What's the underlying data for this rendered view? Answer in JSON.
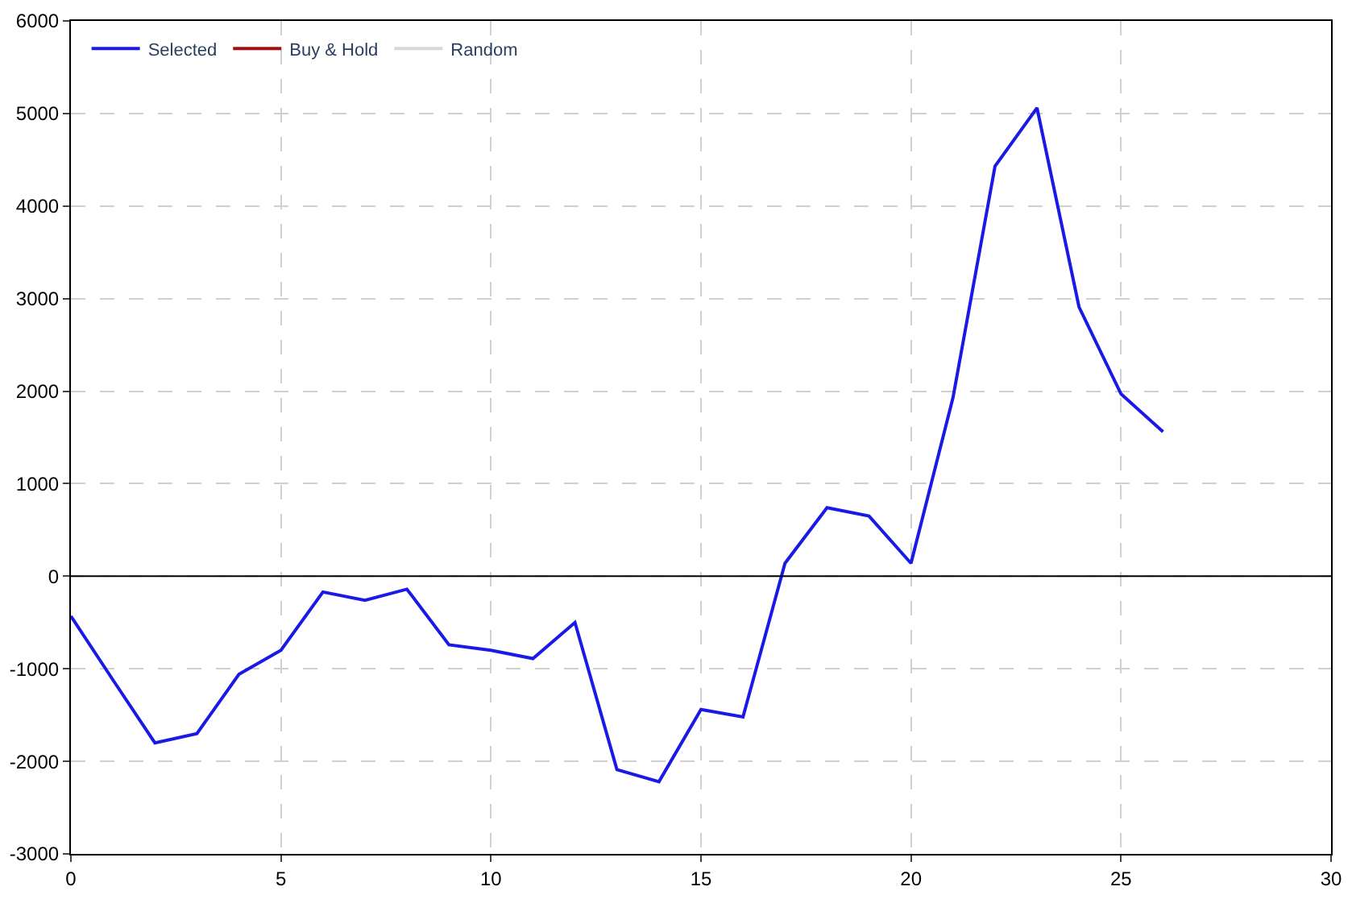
{
  "chart_data": {
    "type": "line",
    "x": [
      0,
      1,
      2,
      3,
      4,
      5,
      6,
      7,
      8,
      9,
      10,
      11,
      12,
      13,
      14,
      15,
      16,
      17,
      18,
      19,
      20,
      21,
      22,
      23,
      24,
      25,
      26
    ],
    "series": [
      {
        "name": "Selected",
        "color": "#1a1ae6",
        "values": [
          -430,
          -1120,
          -1800,
          -1700,
          -1060,
          -800,
          -170,
          -260,
          -140,
          -740,
          -800,
          -890,
          -500,
          -2090,
          -2220,
          -1440,
          -1520,
          140,
          740,
          650,
          140,
          1930,
          4430,
          5060,
          2910,
          1970,
          1560
        ]
      },
      {
        "name": "Buy & Hold",
        "color": "#a01010",
        "values": [
          null,
          null,
          null,
          null,
          null,
          null,
          null,
          null,
          null,
          null,
          null,
          null,
          null,
          null,
          null,
          null,
          null,
          null,
          null,
          null,
          null,
          null,
          null,
          null,
          null,
          null,
          null
        ]
      },
      {
        "name": "Random",
        "color": "#d8d8d8",
        "values": [
          null,
          null,
          null,
          null,
          null,
          null,
          null,
          null,
          null,
          null,
          null,
          null,
          null,
          null,
          null,
          null,
          null,
          null,
          null,
          null,
          null,
          null,
          null,
          null,
          null,
          null,
          null
        ]
      }
    ],
    "xlim": [
      0,
      30
    ],
    "xticks": [
      0,
      5,
      10,
      15,
      20,
      25,
      30
    ],
    "ylim": [
      -3000,
      6000
    ],
    "yticks": [
      -3000,
      -2000,
      -1000,
      0,
      1000,
      2000,
      3000,
      4000,
      5000,
      6000
    ],
    "ref_lines": [
      {
        "axis": "y",
        "value": 0,
        "color": "#000000"
      }
    ],
    "grid": true,
    "legend": "top left",
    "line_style": "solid"
  }
}
